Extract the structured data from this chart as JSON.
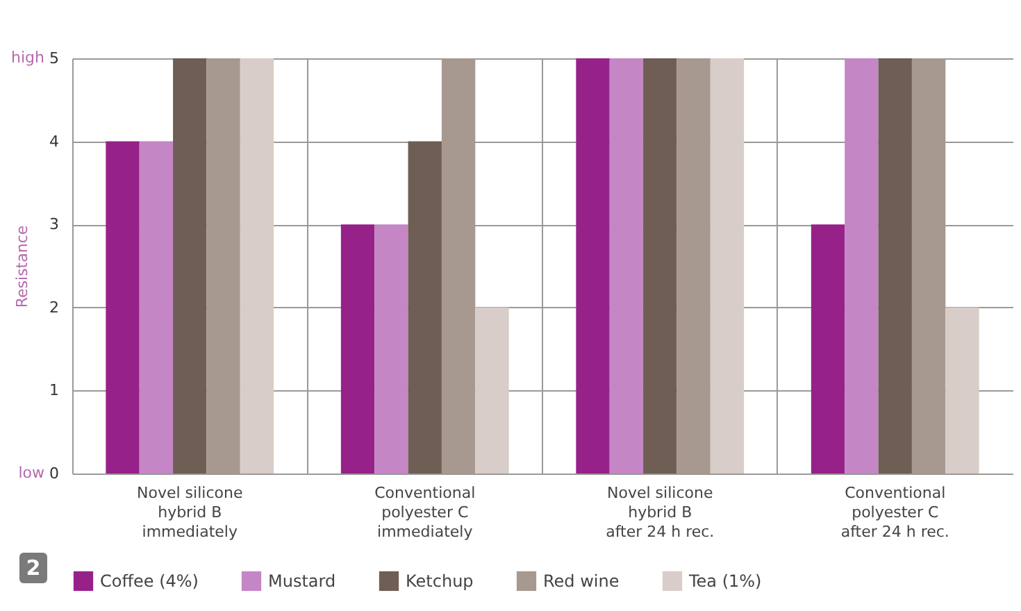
{
  "chart_data": {
    "type": "bar",
    "categories": [
      "Novel silicone\nhybrid B\nimmediately",
      "Conventional\npolyester C\nimmediately",
      "Novel silicone\nhybrid B\nafter 24 h rec.",
      "Conventional\npolyester C\nafter 24 h rec."
    ],
    "series": [
      {
        "name": "Coffee (4%)",
        "color": "#962189",
        "values": [
          4,
          3,
          5,
          3
        ]
      },
      {
        "name": "Mustard",
        "color": "#c486c4",
        "values": [
          4,
          3,
          5,
          5
        ]
      },
      {
        "name": "Ketchup",
        "color": "#6e5e54",
        "values": [
          5,
          4,
          5,
          5
        ]
      },
      {
        "name": "Red wine",
        "color": "#a79890",
        "values": [
          5,
          5,
          5,
          5
        ]
      },
      {
        "name": "Tea (1%)",
        "color": "#d8cdc8",
        "values": [
          5,
          2,
          5,
          2
        ]
      }
    ],
    "ylabel": "Resistance",
    "ylim": [
      0,
      5
    ],
    "yticks": [
      0,
      1,
      2,
      3,
      4,
      5
    ],
    "annotations": [
      "high",
      "low",
      "2"
    ],
    "grid": true,
    "legend": "bottom"
  }
}
